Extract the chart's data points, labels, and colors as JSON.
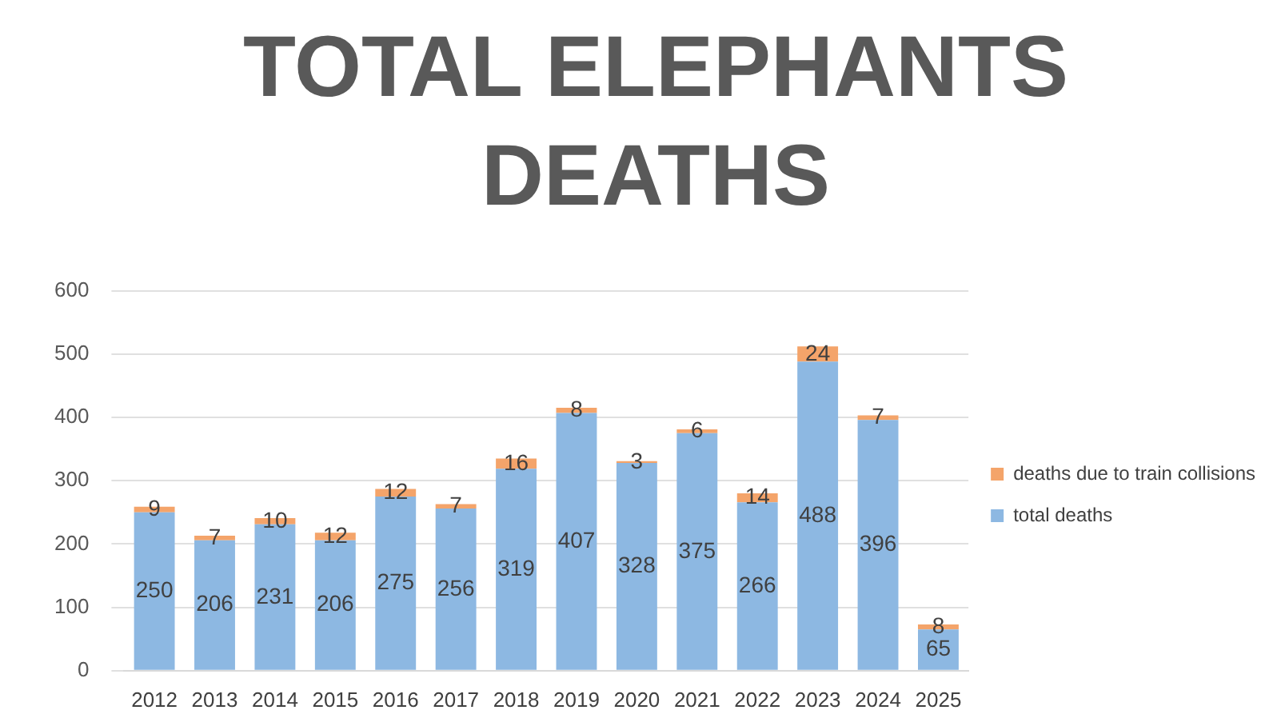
{
  "chart_data": {
    "type": "bar",
    "title": "TOTAL ELEPHANTS DEATHS",
    "categories": [
      "2012",
      "2013",
      "2014",
      "2015",
      "2016",
      "2017",
      "2018",
      "2019",
      "2020",
      "2021",
      "2022",
      "2023",
      "2024",
      "2025"
    ],
    "stacked": true,
    "series": [
      {
        "name": "total deaths",
        "color": "#8db8e2",
        "values": [
          250,
          206,
          231,
          206,
          275,
          256,
          319,
          407,
          328,
          375,
          266,
          488,
          396,
          65
        ]
      },
      {
        "name": "deaths due to train collisions",
        "color": "#f4a46a",
        "values": [
          9,
          7,
          10,
          12,
          12,
          7,
          16,
          8,
          3,
          6,
          14,
          24,
          7,
          8
        ]
      }
    ],
    "ylim": [
      0,
      600
    ],
    "yticks": [
      0,
      100,
      200,
      300,
      400,
      500,
      600
    ],
    "grid": "y",
    "legend": "right",
    "data_labels": true
  }
}
